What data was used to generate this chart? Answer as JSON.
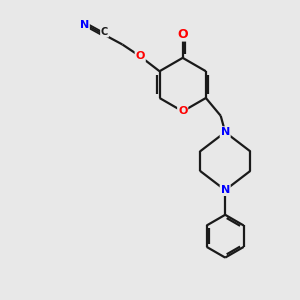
{
  "bg_color": "#e8e8e8",
  "bond_color": "#1a1a1a",
  "oxygen_color": "#ff0000",
  "nitrogen_color": "#0000ff",
  "carbon_color": "#1a1a1a",
  "line_width": 1.6,
  "figsize": [
    3.0,
    3.0
  ],
  "dpi": 100,
  "xlim": [
    0,
    10
  ],
  "ylim": [
    0,
    10
  ]
}
